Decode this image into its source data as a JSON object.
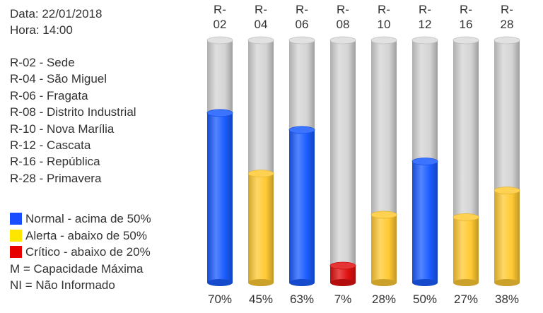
{
  "header": {
    "date_label": "Data: 22/01/2018",
    "time_label": "Hora: 14:00"
  },
  "stations": [
    "R-02 - Sede",
    "R-04 - São Miguel",
    "R-06 - Fragata",
    "R-08 - Distrito Industrial",
    "R-10 - Nova Marília",
    "R-12 - Cascata",
    "R-16 - República",
    "R-28 - Primavera"
  ],
  "legend": {
    "items": [
      {
        "label": "Normal - acima de 50%",
        "color": "#1a4dff"
      },
      {
        "label": "Alerta - abaixo de 50%",
        "color": "#ffe600"
      },
      {
        "label": "Crítico - abaixo de 20%",
        "color": "#e60000"
      }
    ],
    "notes": [
      "M = Capacidade Máxima",
      "NI = Não Informado"
    ]
  },
  "chart_data": {
    "type": "bar",
    "categories": [
      "R-02",
      "R-04",
      "R-06",
      "R-08",
      "R-10",
      "R-12",
      "R-16",
      "R-28"
    ],
    "values": [
      70,
      45,
      63,
      7,
      28,
      50,
      27,
      38
    ],
    "value_labels": [
      "70%",
      "45%",
      "63%",
      "7%",
      "28%",
      "50%",
      "27%",
      "38%"
    ],
    "status": [
      "normal",
      "alerta",
      "normal",
      "critico",
      "alerta",
      "normal",
      "alerta",
      "alerta"
    ],
    "ylim": [
      0,
      100
    ],
    "colors": {
      "normal": "#1a5cff",
      "alerta": "#ffc933",
      "critico": "#e01010",
      "empty": "#d4d4d4"
    }
  }
}
